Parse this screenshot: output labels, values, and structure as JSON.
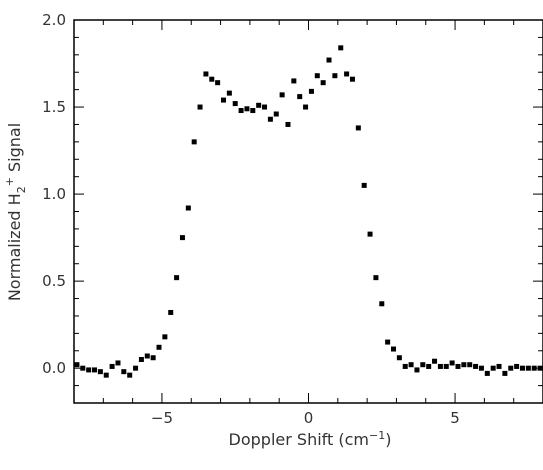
{
  "chart_data": {
    "type": "scatter",
    "xlabel": "Doppler Shift (cm",
    "xlabel_sup": "−1",
    "xlabel_close": ")",
    "ylabel_pre": "Normalized  H",
    "ylabel_sub": "2",
    "ylabel_sup": "+",
    "ylabel_post": " Signal",
    "xlim": [
      -8,
      8
    ],
    "ylim": [
      -0.2,
      2.0
    ],
    "xticks": [
      -5,
      0,
      5
    ],
    "xtick_labels": [
      "−5",
      "0",
      "5"
    ],
    "yticks": [
      0.0,
      0.5,
      1.0,
      1.5,
      2.0
    ],
    "ytick_labels": [
      "0.0",
      "0.5",
      "1.0",
      "1.5",
      "2.0"
    ],
    "grid": false,
    "marker": "square",
    "marker_color": "#000000",
    "series": [
      {
        "x": [
          -7.9,
          -7.7,
          -7.5,
          -7.3,
          -7.1,
          -6.9,
          -6.7,
          -6.5,
          -6.3,
          -6.1,
          -5.9,
          -5.7,
          -5.5,
          -5.3,
          -5.1,
          -4.9,
          -4.7,
          -4.5,
          -4.3,
          -4.1,
          -3.9,
          -3.7,
          -3.5,
          -3.3,
          -3.1,
          -2.9,
          -2.7,
          -2.5,
          -2.3,
          -2.1,
          -1.9,
          -1.7,
          -1.5,
          -1.3,
          -1.1,
          -0.9,
          -0.7,
          -0.5,
          -0.3,
          -0.1,
          0.1,
          0.3,
          0.5,
          0.7,
          0.9,
          1.1,
          1.3,
          1.5,
          1.7,
          1.9,
          2.1,
          2.3,
          2.5,
          2.7,
          2.9,
          3.1,
          3.3,
          3.5,
          3.7,
          3.9,
          4.1,
          4.3,
          4.5,
          4.7,
          4.9,
          5.1,
          5.3,
          5.5,
          5.7,
          5.9,
          6.1,
          6.3,
          6.5,
          6.7,
          6.9,
          7.1,
          7.3,
          7.5,
          7.7,
          7.9
        ],
        "y": [
          0.02,
          0.0,
          -0.01,
          -0.01,
          -0.02,
          -0.04,
          0.01,
          0.03,
          -0.02,
          -0.04,
          0.0,
          0.05,
          0.07,
          0.06,
          0.12,
          0.18,
          0.32,
          0.52,
          0.75,
          0.92,
          1.3,
          1.5,
          1.69,
          1.66,
          1.64,
          1.54,
          1.58,
          1.52,
          1.48,
          1.49,
          1.48,
          1.51,
          1.5,
          1.43,
          1.46,
          1.57,
          1.4,
          1.65,
          1.56,
          1.5,
          1.59,
          1.68,
          1.64,
          1.77,
          1.68,
          1.84,
          1.69,
          1.66,
          1.38,
          1.05,
          0.77,
          0.52,
          0.37,
          0.15,
          0.11,
          0.06,
          0.01,
          0.02,
          -0.01,
          0.02,
          0.01,
          0.04,
          0.01,
          0.01,
          0.03,
          0.01,
          0.02,
          0.02,
          0.01,
          0.0,
          -0.03,
          0.0,
          0.01,
          -0.03,
          0.0,
          0.01,
          0.0,
          0.0,
          0.0,
          0.0
        ]
      }
    ]
  }
}
